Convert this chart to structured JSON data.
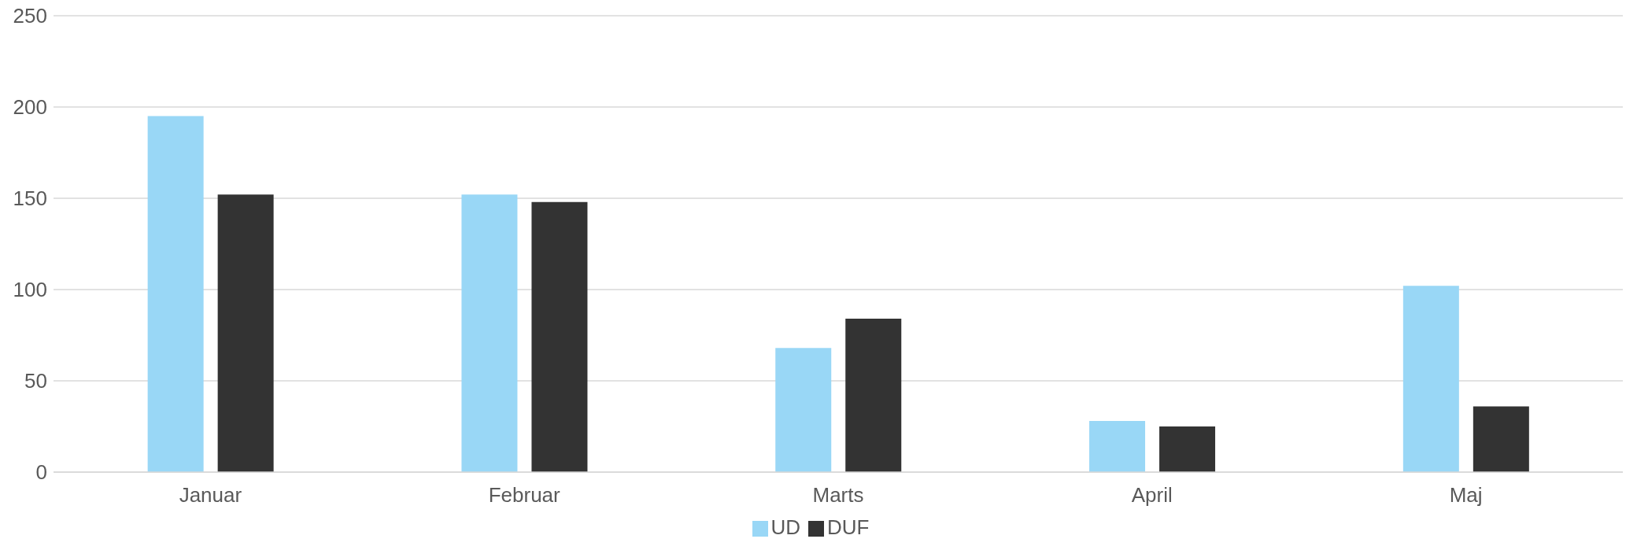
{
  "chart_data": {
    "type": "bar",
    "categories": [
      "Januar",
      "Februar",
      "Marts",
      "April",
      "Maj"
    ],
    "series": [
      {
        "name": "UD",
        "color": "#99d7f6",
        "values": [
          195,
          152,
          68,
          28,
          102
        ]
      },
      {
        "name": "DUF",
        "color": "#333333",
        "values": [
          152,
          148,
          84,
          25,
          36
        ]
      }
    ],
    "ylim": [
      0,
      250
    ],
    "yticks": [
      0,
      50,
      100,
      150,
      200,
      250
    ],
    "grid": "y",
    "legend": "bottom"
  }
}
